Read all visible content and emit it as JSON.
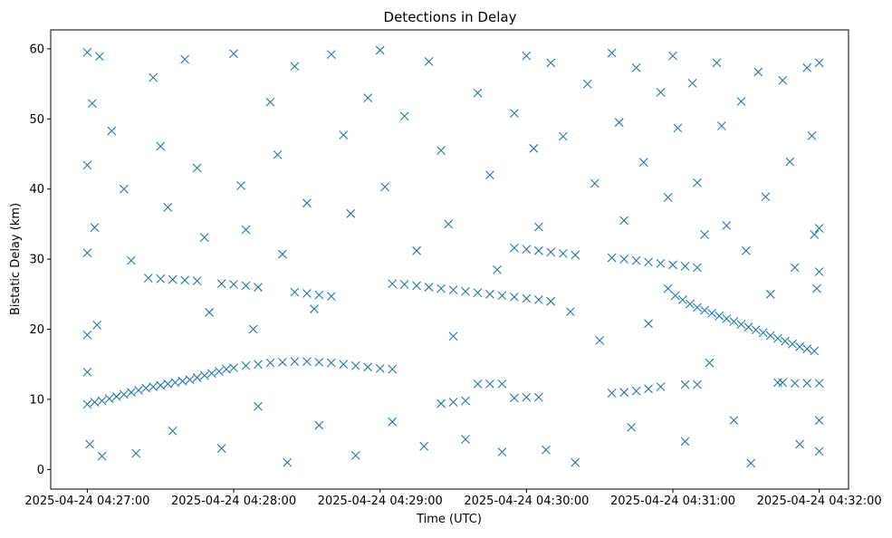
{
  "chart_data": {
    "type": "scatter",
    "title": "Detections in Delay",
    "xlabel": "Time (UTC)",
    "ylabel": "Bistatic Delay (km)",
    "xlim": [
      "2025-04-24 04:26:45",
      "2025-04-24 04:32:12"
    ],
    "ylim": [
      -2.8,
      62.7
    ],
    "x_ticks": [
      "2025-04-24 04:27:00",
      "2025-04-24 04:28:00",
      "2025-04-24 04:29:00",
      "2025-04-24 04:30:00",
      "2025-04-24 04:31:00",
      "2025-04-24 04:32:00"
    ],
    "y_ticks": [
      "0",
      "10",
      "20",
      "30",
      "40",
      "50",
      "60"
    ],
    "marker": "x",
    "color": "#1f77b4",
    "grid": false,
    "legend": "none",
    "series": [
      {
        "note": "track 1 (rising then flat)",
        "points": [
          [
            "2025-04-24 04:27:00",
            9.3
          ],
          [
            "2025-04-24 04:27:03",
            9.6
          ],
          [
            "2025-04-24 04:27:06",
            9.8
          ],
          [
            "2025-04-24 04:27:09",
            10.1
          ],
          [
            "2025-04-24 04:27:12",
            10.4
          ],
          [
            "2025-04-24 04:27:15",
            10.7
          ],
          [
            "2025-04-24 04:27:18",
            11.0
          ],
          [
            "2025-04-24 04:27:21",
            11.3
          ],
          [
            "2025-04-24 04:27:24",
            11.6
          ],
          [
            "2025-04-24 04:27:27",
            11.8
          ],
          [
            "2025-04-24 04:27:30",
            12.0
          ],
          [
            "2025-04-24 04:27:33",
            12.2
          ],
          [
            "2025-04-24 04:27:36",
            12.4
          ],
          [
            "2025-04-24 04:27:39",
            12.6
          ],
          [
            "2025-04-24 04:27:42",
            12.8
          ],
          [
            "2025-04-24 04:27:45",
            13.1
          ],
          [
            "2025-04-24 04:27:48",
            13.4
          ],
          [
            "2025-04-24 04:27:51",
            13.7
          ],
          [
            "2025-04-24 04:27:54",
            14.0
          ],
          [
            "2025-04-24 04:27:57",
            14.3
          ],
          [
            "2025-04-24 04:28:00",
            14.5
          ],
          [
            "2025-04-24 04:28:05",
            14.8
          ],
          [
            "2025-04-24 04:28:10",
            15.0
          ],
          [
            "2025-04-24 04:28:15",
            15.2
          ],
          [
            "2025-04-24 04:28:20",
            15.3
          ],
          [
            "2025-04-24 04:28:25",
            15.4
          ],
          [
            "2025-04-24 04:28:30",
            15.4
          ],
          [
            "2025-04-24 04:28:35",
            15.3
          ],
          [
            "2025-04-24 04:28:40",
            15.2
          ],
          [
            "2025-04-24 04:28:45",
            15.0
          ],
          [
            "2025-04-24 04:28:50",
            14.8
          ],
          [
            "2025-04-24 04:28:55",
            14.6
          ],
          [
            "2025-04-24 04:29:00",
            14.4
          ],
          [
            "2025-04-24 04:29:05",
            14.3
          ]
        ]
      },
      {
        "note": "track 2 (plateau near 27 / 26)",
        "points": [
          [
            "2025-04-24 04:27:25",
            27.3
          ],
          [
            "2025-04-24 04:27:30",
            27.2
          ],
          [
            "2025-04-24 04:27:35",
            27.1
          ],
          [
            "2025-04-24 04:27:40",
            27.0
          ],
          [
            "2025-04-24 04:27:45",
            26.9
          ],
          [
            "2025-04-24 04:27:55",
            26.5
          ],
          [
            "2025-04-24 04:28:00",
            26.4
          ],
          [
            "2025-04-24 04:28:05",
            26.2
          ],
          [
            "2025-04-24 04:28:10",
            26.0
          ],
          [
            "2025-04-24 04:28:25",
            25.3
          ],
          [
            "2025-04-24 04:28:30",
            25.1
          ],
          [
            "2025-04-24 04:28:35",
            24.9
          ],
          [
            "2025-04-24 04:28:40",
            24.7
          ],
          [
            "2025-04-24 04:29:05",
            26.5
          ],
          [
            "2025-04-24 04:29:10",
            26.4
          ],
          [
            "2025-04-24 04:29:15",
            26.2
          ],
          [
            "2025-04-24 04:29:20",
            26.0
          ],
          [
            "2025-04-24 04:29:25",
            25.8
          ],
          [
            "2025-04-24 04:29:30",
            25.6
          ],
          [
            "2025-04-24 04:29:35",
            25.4
          ],
          [
            "2025-04-24 04:29:40",
            25.2
          ],
          [
            "2025-04-24 04:29:45",
            25.0
          ],
          [
            "2025-04-24 04:29:50",
            24.8
          ],
          [
            "2025-04-24 04:29:55",
            24.6
          ],
          [
            "2025-04-24 04:30:00",
            24.4
          ],
          [
            "2025-04-24 04:30:05",
            24.2
          ],
          [
            "2025-04-24 04:30:10",
            24.0
          ]
        ]
      },
      {
        "note": "track 3 (plateau near 31 to 29)",
        "points": [
          [
            "2025-04-24 04:29:55",
            31.6
          ],
          [
            "2025-04-24 04:30:00",
            31.4
          ],
          [
            "2025-04-24 04:30:05",
            31.2
          ],
          [
            "2025-04-24 04:30:10",
            31.0
          ],
          [
            "2025-04-24 04:30:15",
            30.8
          ],
          [
            "2025-04-24 04:30:20",
            30.6
          ],
          [
            "2025-04-24 04:30:35",
            30.2
          ],
          [
            "2025-04-24 04:30:40",
            30.0
          ],
          [
            "2025-04-24 04:30:45",
            29.8
          ],
          [
            "2025-04-24 04:30:50",
            29.6
          ],
          [
            "2025-04-24 04:30:55",
            29.4
          ],
          [
            "2025-04-24 04:31:00",
            29.2
          ],
          [
            "2025-04-24 04:31:05",
            29.0
          ],
          [
            "2025-04-24 04:31:10",
            28.8
          ]
        ]
      },
      {
        "note": "track 4 (descending)",
        "points": [
          [
            "2025-04-24 04:30:58",
            25.8
          ],
          [
            "2025-04-24 04:31:01",
            24.8
          ],
          [
            "2025-04-24 04:31:04",
            24.2
          ],
          [
            "2025-04-24 04:31:07",
            23.6
          ],
          [
            "2025-04-24 04:31:10",
            23.1
          ],
          [
            "2025-04-24 04:31:13",
            22.7
          ],
          [
            "2025-04-24 04:31:16",
            22.3
          ],
          [
            "2025-04-24 04:31:19",
            21.9
          ],
          [
            "2025-04-24 04:31:22",
            21.5
          ],
          [
            "2025-04-24 04:31:25",
            21.1
          ],
          [
            "2025-04-24 04:31:28",
            20.7
          ],
          [
            "2025-04-24 04:31:31",
            20.3
          ],
          [
            "2025-04-24 04:31:34",
            19.9
          ],
          [
            "2025-04-24 04:31:37",
            19.5
          ],
          [
            "2025-04-24 04:31:40",
            19.1
          ],
          [
            "2025-04-24 04:31:43",
            18.7
          ],
          [
            "2025-04-24 04:31:46",
            18.3
          ],
          [
            "2025-04-24 04:31:49",
            17.9
          ],
          [
            "2025-04-24 04:31:52",
            17.5
          ],
          [
            "2025-04-24 04:31:55",
            17.2
          ],
          [
            "2025-04-24 04:31:58",
            16.9
          ]
        ]
      },
      {
        "note": "track 5 (short segments near 10 to 12)",
        "points": [
          [
            "2025-04-24 04:29:25",
            9.4
          ],
          [
            "2025-04-24 04:29:30",
            9.6
          ],
          [
            "2025-04-24 04:29:35",
            9.8
          ],
          [
            "2025-04-24 04:29:40",
            12.2
          ],
          [
            "2025-04-24 04:29:45",
            12.2
          ],
          [
            "2025-04-24 04:29:50",
            12.2
          ],
          [
            "2025-04-24 04:29:55",
            10.2
          ],
          [
            "2025-04-24 04:30:00",
            10.3
          ],
          [
            "2025-04-24 04:30:05",
            10.3
          ],
          [
            "2025-04-24 04:30:35",
            10.9
          ],
          [
            "2025-04-24 04:30:40",
            11.0
          ],
          [
            "2025-04-24 04:30:45",
            11.2
          ],
          [
            "2025-04-24 04:30:50",
            11.5
          ],
          [
            "2025-04-24 04:30:55",
            11.8
          ],
          [
            "2025-04-24 04:31:05",
            12.1
          ],
          [
            "2025-04-24 04:31:10",
            12.1
          ],
          [
            "2025-04-24 04:31:45",
            12.4
          ],
          [
            "2025-04-24 04:31:50",
            12.3
          ],
          [
            "2025-04-24 04:31:55",
            12.3
          ],
          [
            "2025-04-24 04:32:00",
            12.3
          ]
        ]
      },
      {
        "note": "scattered detections",
        "points": [
          [
            "2025-04-24 04:27:00",
            59.5
          ],
          [
            "2025-04-24 04:27:05",
            58.9
          ],
          [
            "2025-04-24 04:27:00",
            43.4
          ],
          [
            "2025-04-24 04:27:02",
            52.2
          ],
          [
            "2025-04-24 04:27:10",
            48.3
          ],
          [
            "2025-04-24 04:27:00",
            30.9
          ],
          [
            "2025-04-24 04:27:03",
            34.5
          ],
          [
            "2025-04-24 04:27:00",
            19.2
          ],
          [
            "2025-04-24 04:27:04",
            20.6
          ],
          [
            "2025-04-24 04:27:00",
            13.9
          ],
          [
            "2025-04-24 04:27:01",
            3.6
          ],
          [
            "2025-04-24 04:27:06",
            1.9
          ],
          [
            "2025-04-24 04:27:15",
            40.0
          ],
          [
            "2025-04-24 04:27:18",
            29.8
          ],
          [
            "2025-04-24 04:27:20",
            2.3
          ],
          [
            "2025-04-24 04:27:27",
            55.9
          ],
          [
            "2025-04-24 04:27:30",
            46.1
          ],
          [
            "2025-04-24 04:27:33",
            37.4
          ],
          [
            "2025-04-24 04:27:35",
            5.5
          ],
          [
            "2025-04-24 04:27:40",
            58.5
          ],
          [
            "2025-04-24 04:27:45",
            43.0
          ],
          [
            "2025-04-24 04:27:48",
            33.1
          ],
          [
            "2025-04-24 04:27:50",
            22.4
          ],
          [
            "2025-04-24 04:27:55",
            3.0
          ],
          [
            "2025-04-24 04:28:00",
            59.3
          ],
          [
            "2025-04-24 04:28:03",
            40.5
          ],
          [
            "2025-04-24 04:28:05",
            34.2
          ],
          [
            "2025-04-24 04:28:08",
            20.0
          ],
          [
            "2025-04-24 04:28:10",
            9.0
          ],
          [
            "2025-04-24 04:28:15",
            52.4
          ],
          [
            "2025-04-24 04:28:18",
            44.9
          ],
          [
            "2025-04-24 04:28:20",
            30.7
          ],
          [
            "2025-04-24 04:28:22",
            1.0
          ],
          [
            "2025-04-24 04:28:25",
            57.5
          ],
          [
            "2025-04-24 04:28:30",
            38.0
          ],
          [
            "2025-04-24 04:28:33",
            22.9
          ],
          [
            "2025-04-24 04:28:35",
            6.3
          ],
          [
            "2025-04-24 04:28:40",
            59.2
          ],
          [
            "2025-04-24 04:28:45",
            47.7
          ],
          [
            "2025-04-24 04:28:48",
            36.5
          ],
          [
            "2025-04-24 04:28:50",
            2.0
          ],
          [
            "2025-04-24 04:28:55",
            53.0
          ],
          [
            "2025-04-24 04:29:00",
            59.8
          ],
          [
            "2025-04-24 04:29:02",
            40.3
          ],
          [
            "2025-04-24 04:29:05",
            6.8
          ],
          [
            "2025-04-24 04:29:10",
            50.4
          ],
          [
            "2025-04-24 04:29:15",
            31.2
          ],
          [
            "2025-04-24 04:29:18",
            3.3
          ],
          [
            "2025-04-24 04:29:20",
            58.2
          ],
          [
            "2025-04-24 04:29:25",
            45.5
          ],
          [
            "2025-04-24 04:29:28",
            35.0
          ],
          [
            "2025-04-24 04:29:30",
            19.0
          ],
          [
            "2025-04-24 04:29:35",
            4.3
          ],
          [
            "2025-04-24 04:29:40",
            53.7
          ],
          [
            "2025-04-24 04:29:45",
            42.0
          ],
          [
            "2025-04-24 04:29:48",
            28.5
          ],
          [
            "2025-04-24 04:29:50",
            2.5
          ],
          [
            "2025-04-24 04:29:55",
            50.8
          ],
          [
            "2025-04-24 04:30:00",
            59.0
          ],
          [
            "2025-04-24 04:30:03",
            45.8
          ],
          [
            "2025-04-24 04:30:05",
            34.6
          ],
          [
            "2025-04-24 04:30:08",
            2.8
          ],
          [
            "2025-04-24 04:30:10",
            58.0
          ],
          [
            "2025-04-24 04:30:15",
            47.5
          ],
          [
            "2025-04-24 04:30:18",
            22.5
          ],
          [
            "2025-04-24 04:30:20",
            1.0
          ],
          [
            "2025-04-24 04:30:25",
            55.0
          ],
          [
            "2025-04-24 04:30:28",
            40.8
          ],
          [
            "2025-04-24 04:30:30",
            18.4
          ],
          [
            "2025-04-24 04:30:35",
            59.4
          ],
          [
            "2025-04-24 04:30:38",
            49.5
          ],
          [
            "2025-04-24 04:30:40",
            35.5
          ],
          [
            "2025-04-24 04:30:43",
            6.0
          ],
          [
            "2025-04-24 04:30:45",
            57.3
          ],
          [
            "2025-04-24 04:30:48",
            43.8
          ],
          [
            "2025-04-24 04:30:50",
            20.8
          ],
          [
            "2025-04-24 04:30:55",
            53.8
          ],
          [
            "2025-04-24 04:30:58",
            38.8
          ],
          [
            "2025-04-24 04:31:00",
            59.0
          ],
          [
            "2025-04-24 04:31:02",
            48.7
          ],
          [
            "2025-04-24 04:31:05",
            4.0
          ],
          [
            "2025-04-24 04:31:08",
            55.1
          ],
          [
            "2025-04-24 04:31:10",
            40.9
          ],
          [
            "2025-04-24 04:31:13",
            33.5
          ],
          [
            "2025-04-24 04:31:15",
            15.2
          ],
          [
            "2025-04-24 04:31:18",
            58.0
          ],
          [
            "2025-04-24 04:31:20",
            49.0
          ],
          [
            "2025-04-24 04:31:22",
            34.8
          ],
          [
            "2025-04-24 04:31:25",
            7.0
          ],
          [
            "2025-04-24 04:31:28",
            52.5
          ],
          [
            "2025-04-24 04:31:30",
            31.2
          ],
          [
            "2025-04-24 04:31:32",
            0.9
          ],
          [
            "2025-04-24 04:31:35",
            56.7
          ],
          [
            "2025-04-24 04:31:38",
            38.9
          ],
          [
            "2025-04-24 04:31:40",
            25.0
          ],
          [
            "2025-04-24 04:31:43",
            12.4
          ],
          [
            "2025-04-24 04:31:45",
            55.5
          ],
          [
            "2025-04-24 04:31:48",
            43.9
          ],
          [
            "2025-04-24 04:31:50",
            28.8
          ],
          [
            "2025-04-24 04:31:52",
            3.6
          ],
          [
            "2025-04-24 04:31:55",
            57.3
          ],
          [
            "2025-04-24 04:31:57",
            47.6
          ],
          [
            "2025-04-24 04:31:58",
            33.5
          ],
          [
            "2025-04-24 04:31:59",
            25.8
          ],
          [
            "2025-04-24 04:32:00",
            58.0
          ],
          [
            "2025-04-24 04:32:00",
            34.4
          ],
          [
            "2025-04-24 04:32:00",
            28.2
          ],
          [
            "2025-04-24 04:32:00",
            7.0
          ],
          [
            "2025-04-24 04:32:00",
            2.6
          ]
        ]
      }
    ]
  }
}
